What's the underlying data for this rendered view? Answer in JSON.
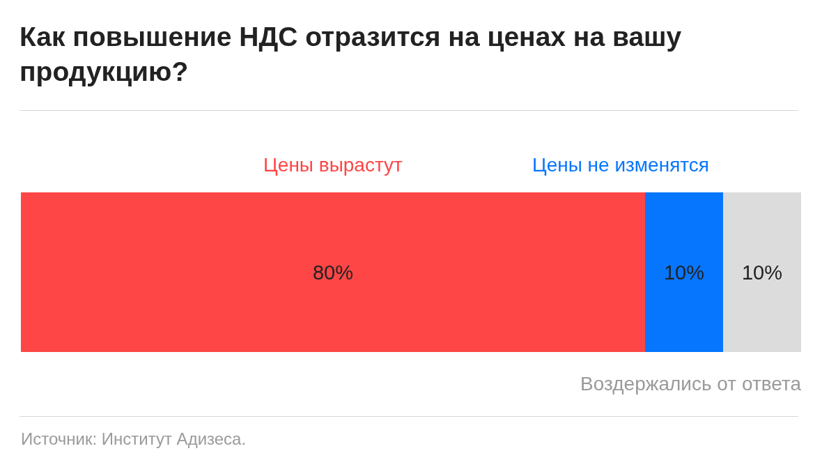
{
  "chart_data": {
    "type": "bar",
    "orientation": "horizontal",
    "stacked": true,
    "title": "Как повышение НДС отразится на ценах на вашу продукцию?",
    "categories": [
      null
    ],
    "legend": false,
    "series": [
      {
        "name": "Цены вырастут",
        "color": "#fe4646",
        "values": [
          80
        ],
        "value_labels": [
          "80%"
        ]
      },
      {
        "name": "Цены не изменятся",
        "color": "#0676fe",
        "values": [
          10
        ],
        "value_labels": [
          "10%"
        ]
      },
      {
        "name": "Воздержались от ответа",
        "color": "#dcdcdc",
        "values": [
          10
        ],
        "value_labels": [
          "10%"
        ]
      }
    ],
    "annotations": [
      "Источник: Институт Адизеса."
    ]
  }
}
